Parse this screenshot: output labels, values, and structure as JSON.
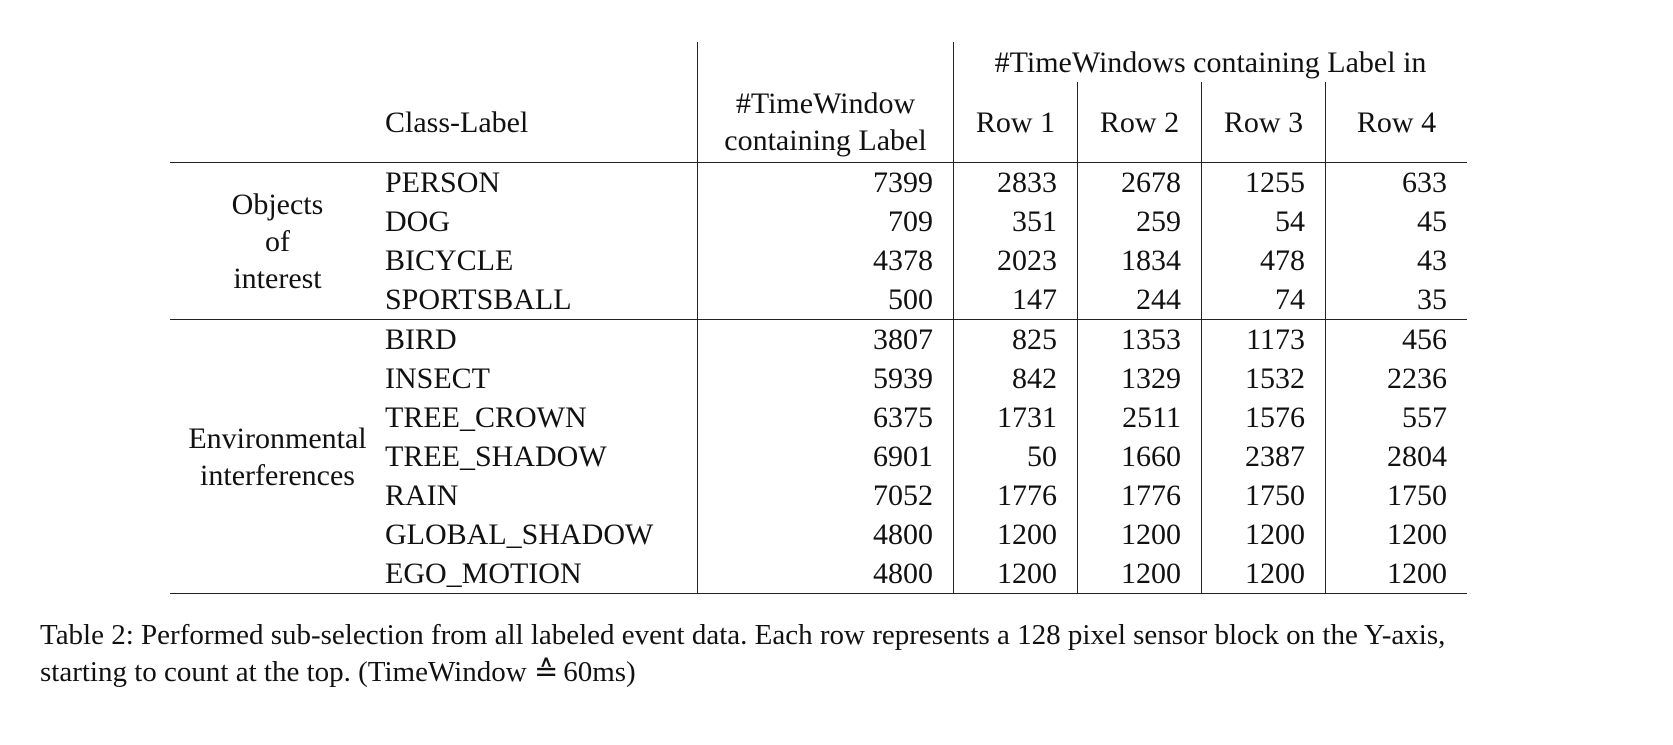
{
  "table": {
    "super_header": "#TimeWindows containing Label in",
    "headers": {
      "class_label": "Class-Label",
      "total_line1": "#TimeWindow",
      "total_line2": "containing Label",
      "row1": "Row 1",
      "row2": "Row 2",
      "row3": "Row 3",
      "row4": "Row 4"
    },
    "groups": [
      {
        "label_lines": [
          "Objects",
          "of",
          "interest"
        ],
        "rows": [
          {
            "label": "PERSON",
            "total": "7399",
            "r1": "2833",
            "r2": "2678",
            "r3": "1255",
            "r4": "633"
          },
          {
            "label": "DOG",
            "total": "709",
            "r1": "351",
            "r2": "259",
            "r3": "54",
            "r4": "45"
          },
          {
            "label": "BICYCLE",
            "total": "4378",
            "r1": "2023",
            "r2": "1834",
            "r3": "478",
            "r4": "43"
          },
          {
            "label": "SPORTSBALL",
            "total": "500",
            "r1": "147",
            "r2": "244",
            "r3": "74",
            "r4": "35"
          }
        ]
      },
      {
        "label_lines": [
          "Environmental",
          "interferences"
        ],
        "rows": [
          {
            "label": "BIRD",
            "total": "3807",
            "r1": "825",
            "r2": "1353",
            "r3": "1173",
            "r4": "456"
          },
          {
            "label": "INSECT",
            "total": "5939",
            "r1": "842",
            "r2": "1329",
            "r3": "1532",
            "r4": "2236"
          },
          {
            "label": "TREE_CROWN",
            "total": "6375",
            "r1": "1731",
            "r2": "2511",
            "r3": "1576",
            "r4": "557"
          },
          {
            "label": "TREE_SHADOW",
            "total": "6901",
            "r1": "50",
            "r2": "1660",
            "r3": "2387",
            "r4": "2804"
          },
          {
            "label": "RAIN",
            "total": "7052",
            "r1": "1776",
            "r2": "1776",
            "r3": "1750",
            "r4": "1750"
          },
          {
            "label": "GLOBAL_SHADOW",
            "total": "4800",
            "r1": "1200",
            "r2": "1200",
            "r3": "1200",
            "r4": "1200"
          },
          {
            "label": "EGO_MOTION",
            "total": "4800",
            "r1": "1200",
            "r2": "1200",
            "r3": "1200",
            "r4": "1200"
          }
        ]
      }
    ]
  },
  "caption": {
    "line1": "Table 2: Performed sub-selection from all labeled event data.  Each row represents a 128 pixel sensor block on the Y-axis,",
    "line2_pre": "starting to count at the top. (TimeWindow ",
    "line2_symbol": "≙",
    "line2_post": " 60ms)"
  }
}
